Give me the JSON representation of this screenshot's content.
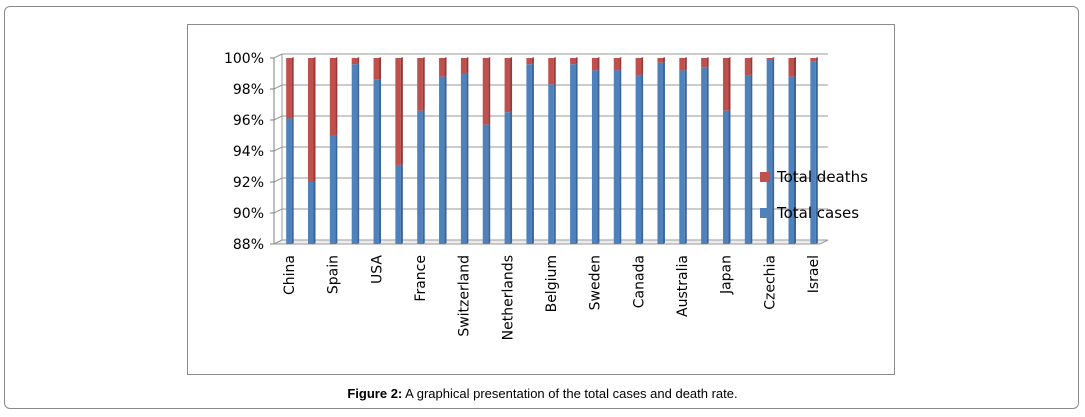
{
  "caption": {
    "label": "Figure 2:",
    "text": "A graphical presentation of the total cases and death rate."
  },
  "chart_data": {
    "type": "bar",
    "stacking": "percent",
    "categories": [
      "China",
      "",
      "Spain",
      "",
      "USA",
      "",
      "France",
      "",
      "Switzerland",
      "",
      "Netherlands",
      "",
      "Belgium",
      "",
      "Sweden",
      "",
      "Canada",
      "",
      "Australia",
      "",
      "Japan",
      "",
      "Czechia",
      "",
      "Israel"
    ],
    "series": [
      {
        "name": "Total cases",
        "color": "#4f81bd",
        "values": [
          96.1,
          92.0,
          95.0,
          99.6,
          98.6,
          93.1,
          96.6,
          98.8,
          99.0,
          95.7,
          96.5,
          99.6,
          98.3,
          99.6,
          99.2,
          99.2,
          98.9,
          99.7,
          99.2,
          99.4,
          96.6,
          98.9,
          99.9,
          98.8,
          99.8
        ]
      },
      {
        "name": "Total deaths",
        "color": "#c0504d",
        "values": [
          3.9,
          8.0,
          5.0,
          0.4,
          1.4,
          6.9,
          3.4,
          1.2,
          1.0,
          4.3,
          3.5,
          0.4,
          1.7,
          0.4,
          0.8,
          0.8,
          1.1,
          0.3,
          0.8,
          0.6,
          3.4,
          1.1,
          0.1,
          1.2,
          0.2
        ]
      }
    ],
    "ylim": [
      88,
      100
    ],
    "yticks": [
      "88%",
      "90%",
      "92%",
      "94%",
      "96%",
      "98%",
      "100%"
    ],
    "xlabel": "",
    "ylabel": "",
    "legend_position": "right",
    "legend": [
      "Total deaths",
      "Total cases"
    ],
    "colors": {
      "cases": "#4f81bd",
      "deaths": "#c0504d"
    }
  }
}
